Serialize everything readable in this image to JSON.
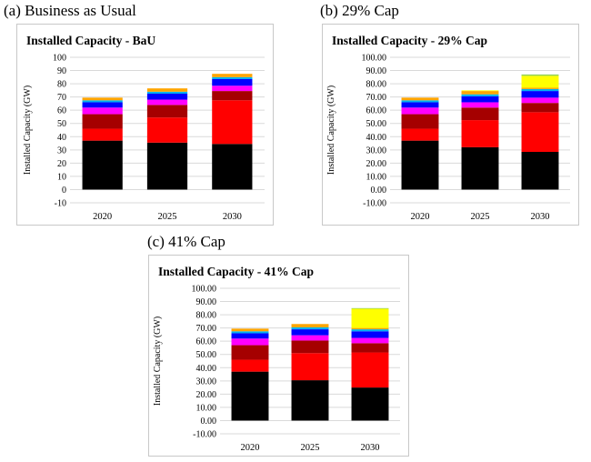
{
  "colors": {
    "segments": [
      "#000000",
      "#ff0000",
      "#a50000",
      "#ff00ff",
      "#0000ff",
      "#00b0f0",
      "#ffa500",
      "#ffff00",
      "#92d050"
    ],
    "grid": "#d9d9d9",
    "border": "#c8c8c8"
  },
  "chart_data": [
    {
      "type": "bar",
      "stacked": true,
      "caption": "(a) Business as Usual",
      "title": "Installed Capacity - BaU",
      "ylabel": "Installed Capacity (GW)",
      "xlabel": "",
      "categories": [
        "2020",
        "2025",
        "2030"
      ],
      "ylim": [
        -10,
        100
      ],
      "ytick_step": 10,
      "ytick_labels": [
        "-10",
        "0",
        "10",
        "20",
        "30",
        "40",
        "50",
        "60",
        "70",
        "80",
        "90",
        "100"
      ],
      "grid": true,
      "legend": "none",
      "series": [
        {
          "values": [
            37,
            35.5,
            34.5
          ]
        },
        {
          "values": [
            9,
            19,
            33
          ]
        },
        {
          "values": [
            11,
            9.5,
            7
          ]
        },
        {
          "values": [
            5,
            4,
            4
          ]
        },
        {
          "values": [
            4,
            4.5,
            5
          ]
        },
        {
          "values": [
            1.5,
            1.5,
            1.5
          ]
        },
        {
          "values": [
            2,
            2.5,
            2.5
          ]
        },
        {
          "values": [
            0,
            0,
            0
          ]
        },
        {
          "values": [
            0,
            0,
            0
          ]
        }
      ]
    },
    {
      "type": "bar",
      "stacked": true,
      "caption": "(b) 29% Cap",
      "title": "Installed Capacity - 29% Cap",
      "ylabel": "Installed Capacity (GW)",
      "xlabel": "",
      "categories": [
        "2020",
        "2025",
        "2030"
      ],
      "ylim": [
        -10,
        100
      ],
      "ytick_step": 10,
      "ytick_labels": [
        "-10.00",
        "0.00",
        "10.00",
        "20.00",
        "30.00",
        "40.00",
        "50.00",
        "60.00",
        "70.00",
        "80.00",
        "90.00",
        "100.00"
      ],
      "grid": true,
      "legend": "none",
      "series": [
        {
          "values": [
            37,
            32,
            28.5
          ]
        },
        {
          "values": [
            9,
            20.5,
            30
          ]
        },
        {
          "values": [
            11,
            9.5,
            7
          ]
        },
        {
          "values": [
            5,
            4,
            4
          ]
        },
        {
          "values": [
            4,
            4.5,
            5
          ]
        },
        {
          "values": [
            1.5,
            1.5,
            1.5
          ]
        },
        {
          "values": [
            2,
            2.5,
            1
          ]
        },
        {
          "values": [
            0,
            0.5,
            9
          ]
        },
        {
          "values": [
            0,
            0,
            1
          ]
        }
      ]
    },
    {
      "type": "bar",
      "stacked": true,
      "caption": "(c) 41% Cap",
      "title": "Installed Capacity - 41% Cap",
      "ylabel": "Installed Capacity (GW)",
      "xlabel": "",
      "categories": [
        "2020",
        "2025",
        "2030"
      ],
      "ylim": [
        -10,
        100
      ],
      "ytick_step": 10,
      "ytick_labels": [
        "-10.00",
        "0.00",
        "10.00",
        "20.00",
        "30.00",
        "40.00",
        "50.00",
        "60.00",
        "70.00",
        "80.00",
        "90.00",
        "100.00"
      ],
      "grid": true,
      "legend": "none",
      "series": [
        {
          "values": [
            37,
            30.5,
            25
          ]
        },
        {
          "values": [
            9,
            20.5,
            26.5
          ]
        },
        {
          "values": [
            11,
            9.5,
            7
          ]
        },
        {
          "values": [
            5,
            4,
            4
          ]
        },
        {
          "values": [
            4,
            4.5,
            5
          ]
        },
        {
          "values": [
            1.5,
            1.5,
            1.5
          ]
        },
        {
          "values": [
            2,
            2.5,
            1
          ]
        },
        {
          "values": [
            0,
            0,
            14.5
          ]
        },
        {
          "values": [
            0,
            0,
            0.5
          ]
        }
      ]
    }
  ]
}
